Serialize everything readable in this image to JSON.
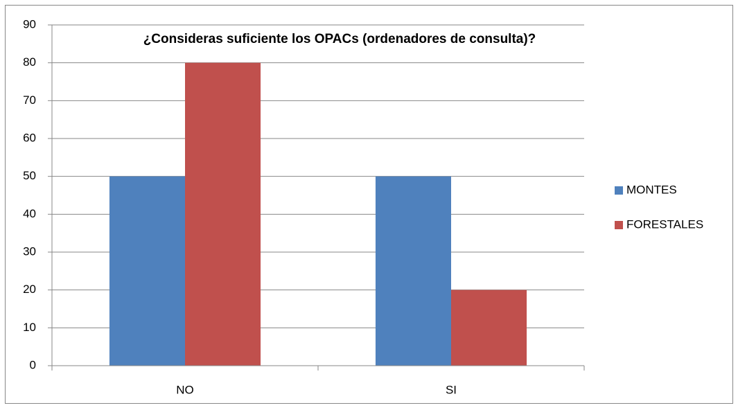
{
  "chart_data": {
    "type": "bar",
    "title": "¿Consideras suficiente los OPACs (ordenadores de consulta)?",
    "categories": [
      "NO",
      "SI"
    ],
    "series": [
      {
        "name": "MONTES",
        "color": "#4f81bd",
        "values": [
          50,
          50
        ]
      },
      {
        "name": "FORESTALES",
        "color": "#c0504d",
        "values": [
          80,
          20
        ]
      }
    ],
    "ylim": [
      0,
      90
    ],
    "yticks": [
      0,
      10,
      20,
      30,
      40,
      50,
      60,
      70,
      80,
      90
    ],
    "grid": true,
    "legend": "right"
  }
}
